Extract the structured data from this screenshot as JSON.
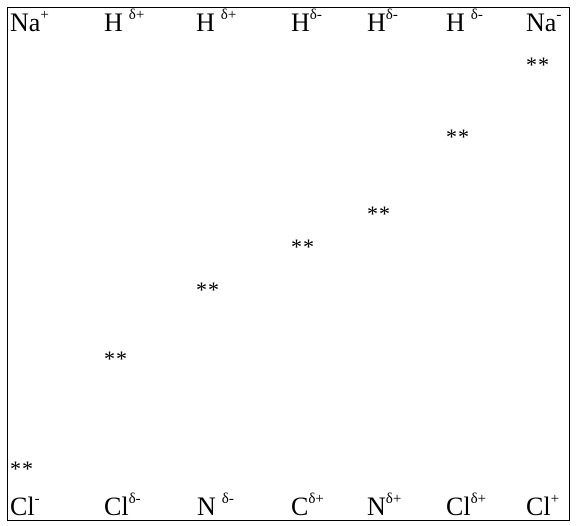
{
  "top_labels": [
    {
      "base": "Na",
      "charge": "+",
      "spaced": false
    },
    {
      "base": "H",
      "charge": "δ+",
      "spaced": true
    },
    {
      "base": "H",
      "charge": "δ+",
      "spaced": true
    },
    {
      "base": "H",
      "charge": "δ-",
      "spaced": false
    },
    {
      "base": "H",
      "charge": "δ-",
      "spaced": false
    },
    {
      "base": "H",
      "charge": "δ-",
      "spaced": true
    },
    {
      "base": "Na",
      "charge": "-",
      "spaced": false
    }
  ],
  "bottom_labels": [
    {
      "base": "Cl",
      "charge": "-",
      "spaced": false
    },
    {
      "base": "Cl",
      "charge": "δ-",
      "spaced": false
    },
    {
      "base": "N",
      "charge": "δ-",
      "spaced": true
    },
    {
      "base": "C",
      "charge": "δ+",
      "spaced": false
    },
    {
      "base": "N",
      "charge": "δ+",
      "spaced": false
    },
    {
      "base": "Cl",
      "charge": "δ+",
      "spaced": false
    },
    {
      "base": "Cl",
      "charge": "+",
      "spaced": false
    }
  ],
  "markers": [
    {
      "text": "**",
      "level": 0.0
    },
    {
      "text": "**",
      "level": 0.3
    },
    {
      "text": "**",
      "level": 0.45
    },
    {
      "text": "**",
      "level": 0.55
    },
    {
      "text": "**",
      "level": 0.63
    },
    {
      "text": "**",
      "level": 0.83
    },
    {
      "text": "**",
      "level": 1.0
    }
  ]
}
